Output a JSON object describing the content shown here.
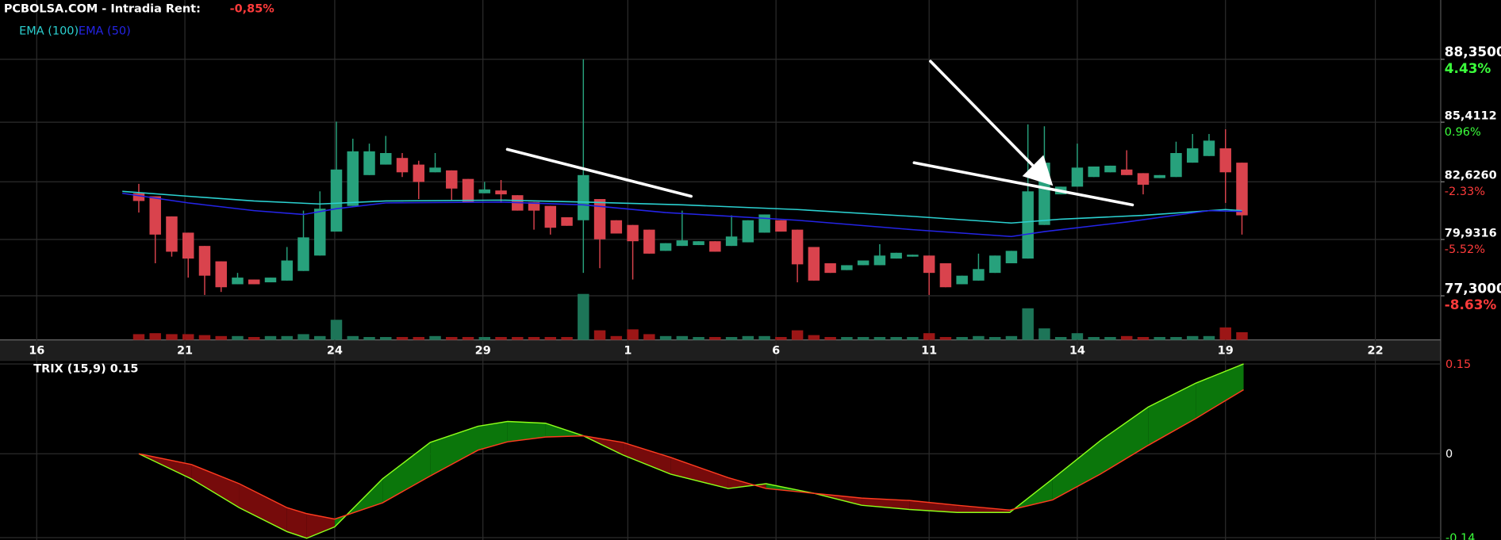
{
  "chart_data": [
    {
      "type": "candlestick",
      "title": "PCBOLSA.COM - Intradia  Rent:",
      "change": "-0,85%",
      "up_color": "#27a17c",
      "down_color": "#d9434d",
      "volume_up_color": "#1d7558",
      "volume_down_color": "#9c1616",
      "grid": true,
      "xlim": [
        -8.43,
        79.07
      ],
      "xticks": [
        {
          "value": -6.2,
          "label": "16"
        },
        {
          "value": 2.8,
          "label": "21"
        },
        {
          "value": 11.9,
          "label": "24"
        },
        {
          "value": 20.9,
          "label": "29"
        },
        {
          "value": 29.7,
          "label": "1"
        },
        {
          "value": 38.7,
          "label": "6"
        },
        {
          "value": 48.0,
          "label": "11"
        },
        {
          "value": 57.0,
          "label": "14"
        },
        {
          "value": 66.0,
          "label": "19"
        },
        {
          "value": 75.1,
          "label": "22"
        }
      ],
      "ylim": [
        75.24,
        91.12
      ],
      "yticks": [
        {
          "value": 88.35,
          "label": "88,3500"
        },
        {
          "value": 85.4112,
          "label": "85,4112"
        },
        {
          "value": 82.626,
          "label": "82,6260"
        },
        {
          "value": 79.9316,
          "label": "79,9316"
        },
        {
          "value": 77.3,
          "label": "77,3000"
        }
      ],
      "y2lim": [
        -11.06,
        7.71
      ],
      "y2ticks": [
        {
          "value": 4.43,
          "label": "4.43%"
        },
        {
          "value": 0.96,
          "label": "0.96%"
        },
        {
          "value": -2.33,
          "label": "-2.33%"
        },
        {
          "value": -5.52,
          "label": "-5.52%"
        },
        {
          "value": -8.63,
          "label": "-8.63%"
        }
      ],
      "open": [
        82.09,
        81.95,
        81.01,
        80.25,
        79.63,
        78.91,
        77.84,
        78.06,
        77.93,
        78.01,
        78.46,
        79.18,
        80.3,
        81.5,
        82.94,
        83.43,
        83.74,
        83.43,
        83.07,
        83.16,
        82.76,
        82.09,
        82.22,
        82.0,
        81.68,
        81.5,
        80.97,
        80.83,
        81.82,
        80.83,
        80.61,
        80.39,
        79.4,
        79.63,
        79.67,
        79.85,
        79.63,
        79.8,
        80.25,
        80.83,
        80.39,
        79.58,
        78.82,
        78.5,
        78.73,
        78.73,
        79.04,
        79.13,
        79.18,
        78.82,
        77.84,
        78.01,
        78.37,
        78.82,
        79.04,
        80.61,
        82.04,
        82.4,
        82.85,
        83.07,
        83.2,
        83.03,
        82.8,
        82.85,
        83.52,
        83.83,
        84.19,
        83.52
      ],
      "high": [
        82.53,
        81.95,
        81.01,
        80.25,
        79.63,
        78.91,
        78.37,
        78.06,
        78.15,
        79.58,
        81.28,
        82.18,
        85.44,
        84.64,
        84.41,
        84.77,
        83.97,
        83.61,
        83.97,
        83.16,
        82.76,
        82.62,
        82.71,
        82.0,
        81.68,
        81.5,
        80.97,
        88.35,
        81.82,
        80.83,
        80.61,
        80.39,
        79.76,
        81.28,
        79.85,
        79.85,
        81.06,
        80.83,
        81.1,
        80.83,
        80.39,
        79.58,
        78.82,
        78.73,
        78.95,
        79.71,
        79.31,
        79.22,
        79.18,
        78.82,
        78.24,
        79.27,
        79.18,
        79.4,
        85.31,
        85.22,
        82.4,
        84.41,
        83.34,
        83.38,
        84.1,
        83.03,
        82.94,
        84.5,
        84.86,
        84.86,
        85.08,
        83.52
      ],
      "low": [
        81.19,
        78.82,
        79.13,
        78.15,
        77.34,
        77.48,
        77.84,
        77.84,
        77.93,
        78.01,
        78.46,
        79.18,
        80.3,
        81.5,
        82.94,
        83.43,
        82.85,
        81.82,
        83.07,
        81.73,
        81.68,
        82.09,
        81.64,
        81.28,
        80.39,
        80.16,
        80.57,
        78.37,
        78.59,
        80.21,
        78.06,
        79.27,
        79.4,
        79.63,
        79.67,
        79.36,
        79.63,
        79.8,
        80.25,
        80.3,
        77.93,
        78.01,
        78.37,
        78.5,
        78.73,
        78.73,
        79.04,
        79.13,
        77.34,
        77.7,
        77.84,
        78.01,
        78.37,
        78.82,
        79.04,
        80.61,
        82.04,
        82.4,
        82.85,
        83.07,
        82.94,
        82.04,
        82.8,
        82.85,
        83.52,
        83.83,
        81.64,
        80.16
      ],
      "close": [
        81.73,
        80.16,
        79.36,
        79.04,
        78.24,
        77.7,
        78.15,
        77.84,
        78.15,
        78.95,
        80.03,
        81.37,
        83.2,
        84.05,
        84.05,
        83.97,
        83.07,
        82.62,
        83.29,
        82.31,
        81.68,
        82.27,
        82.04,
        81.28,
        81.28,
        80.48,
        80.57,
        82.94,
        79.94,
        80.21,
        79.85,
        79.27,
        79.76,
        79.89,
        79.85,
        79.36,
        80.07,
        80.83,
        81.1,
        80.3,
        78.77,
        78.01,
        78.37,
        78.73,
        78.95,
        79.18,
        79.31,
        79.22,
        78.37,
        77.7,
        78.24,
        78.55,
        79.18,
        79.4,
        82.18,
        83.52,
        82.4,
        83.29,
        83.34,
        83.38,
        82.94,
        82.49,
        82.94,
        83.97,
        84.19,
        84.55,
        83.07,
        81.06
      ],
      "volume": [
        6,
        7,
        6,
        6,
        5,
        4,
        4,
        3,
        4,
        4,
        6,
        4,
        21,
        4,
        3,
        3,
        3,
        3,
        4,
        3,
        3,
        3,
        3,
        3,
        3,
        3,
        3,
        48,
        10,
        4,
        11,
        6,
        4,
        4,
        3,
        3,
        3,
        4,
        4,
        3,
        10,
        5,
        3,
        3,
        3,
        3,
        3,
        3,
        7,
        3,
        3,
        4,
        3,
        4,
        33,
        12,
        3,
        7,
        3,
        3,
        4,
        3,
        3,
        3,
        4,
        4,
        13,
        8
      ],
      "series": [
        {
          "name": "EMA (100)",
          "color": "#2bd0d0",
          "x": [
            -1,
            3,
            7,
            11,
            15,
            22,
            27,
            33,
            40,
            47,
            53,
            56,
            61,
            66,
            67
          ],
          "values": [
            82.18,
            81.95,
            81.73,
            81.59,
            81.73,
            81.77,
            81.68,
            81.55,
            81.33,
            81.01,
            80.7,
            80.88,
            81.06,
            81.33,
            81.28
          ]
        },
        {
          "name": "EMA (50)",
          "color": "#2424e6",
          "x": [
            -1,
            3,
            7,
            10,
            12,
            15,
            22,
            27,
            32,
            40,
            47,
            53,
            55,
            60,
            65,
            67
          ],
          "values": [
            82.09,
            81.64,
            81.28,
            81.1,
            81.37,
            81.64,
            81.68,
            81.55,
            81.19,
            80.83,
            80.39,
            80.07,
            80.3,
            80.75,
            81.28,
            81.24
          ]
        }
      ]
    },
    {
      "type": "line",
      "title": "TRIX (15,9) 0.15",
      "grid": true,
      "fill_colors": [
        "#0b760b",
        "#760b0b"
      ],
      "xlim": [
        -8.43,
        79.07
      ],
      "ylim": [
        -0.144,
        0.155
      ],
      "yticks": [
        0.15,
        0,
        -0.14
      ],
      "x": [
        0,
        3.2,
        6.1,
        9.0,
        10.2,
        11.9,
        14.8,
        17.7,
        20.6,
        22.4,
        24.7,
        27.0,
        29.4,
        32.3,
        35.8,
        38.1,
        41.0,
        43.9,
        46.8,
        49.7,
        52.9,
        55.5,
        58.4,
        61.3,
        64.2,
        67.1
      ],
      "series": [
        {
          "color": "#8cff1a",
          "values": [
            0,
            -0.042,
            -0.09,
            -0.13,
            -0.141,
            -0.122,
            -0.042,
            0.019,
            0.046,
            0.054,
            0.051,
            0.03,
            -0.002,
            -0.034,
            -0.058,
            -0.05,
            -0.066,
            -0.086,
            -0.093,
            -0.098,
            -0.098,
            -0.042,
            0.022,
            0.078,
            0.118,
            0.15
          ]
        },
        {
          "color": "#ff3b1f",
          "values": [
            0,
            -0.018,
            -0.05,
            -0.09,
            -0.1,
            -0.109,
            -0.082,
            -0.037,
            0.006,
            0.02,
            0.028,
            0.03,
            0.019,
            -0.006,
            -0.04,
            -0.058,
            -0.066,
            -0.074,
            -0.078,
            -0.086,
            -0.094,
            -0.077,
            -0.034,
            0.014,
            0.059,
            0.107
          ]
        }
      ]
    }
  ]
}
